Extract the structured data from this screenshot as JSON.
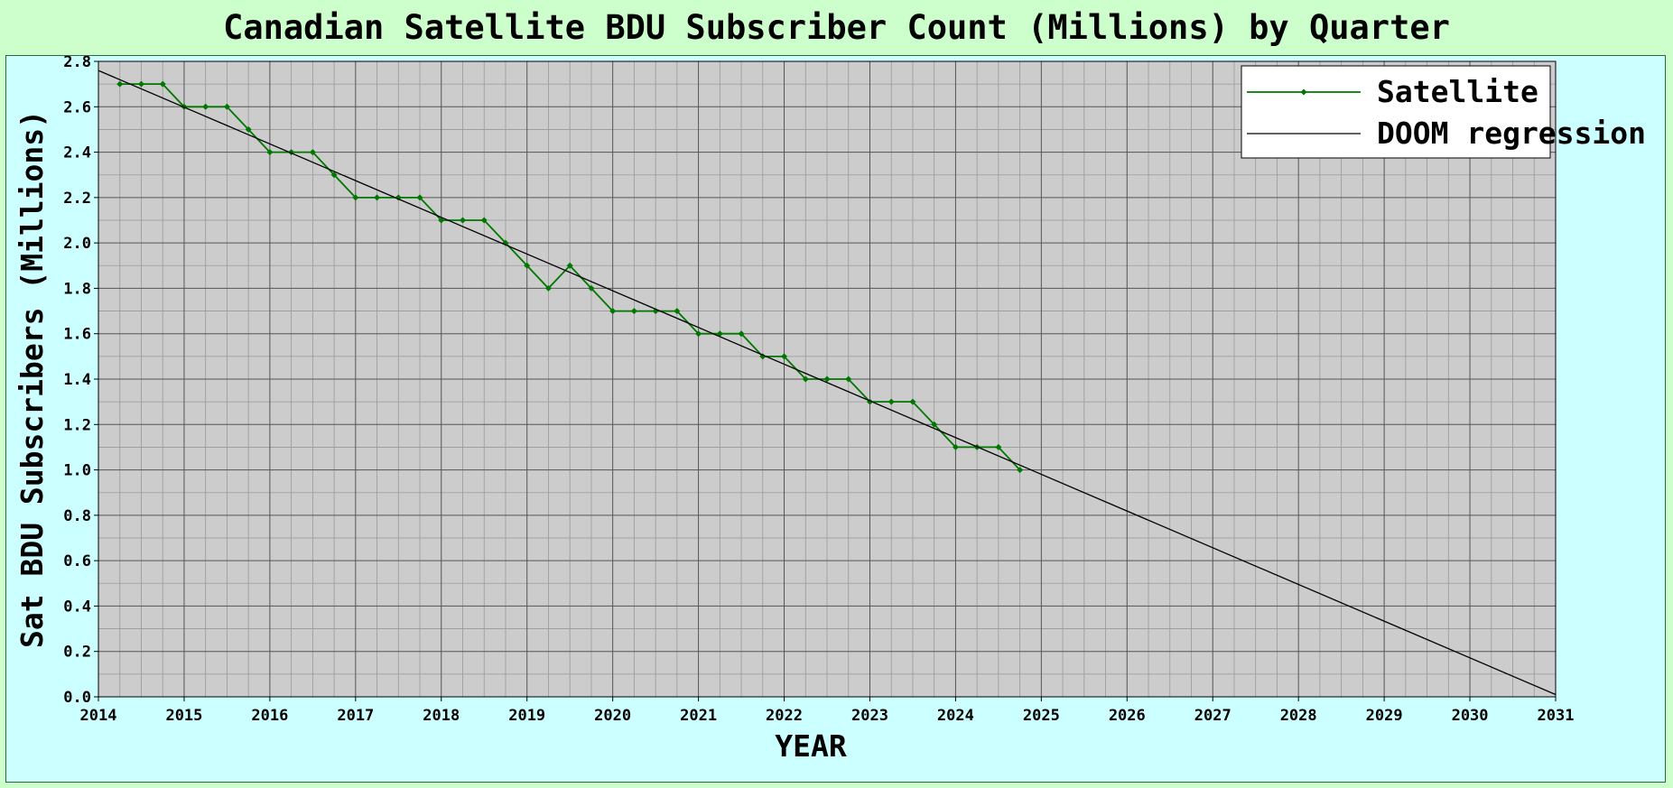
{
  "chart_data": {
    "type": "line",
    "title": "Canadian Satellite BDU Subscriber Count (Millions) by Quarter",
    "xlabel": "YEAR",
    "ylabel": "Sat BDU Subscribers (Millions)",
    "xlim": [
      2014,
      2031
    ],
    "ylim": [
      0.0,
      2.8
    ],
    "x_ticks": [
      "2014",
      "2015",
      "2016",
      "2017",
      "2018",
      "2019",
      "2020",
      "2021",
      "2022",
      "2023",
      "2024",
      "2025",
      "2026",
      "2027",
      "2028",
      "2029",
      "2030",
      "2031"
    ],
    "y_ticks": [
      "0.0",
      "0.2",
      "0.4",
      "0.6",
      "0.8",
      "1.0",
      "1.2",
      "1.4",
      "1.6",
      "1.8",
      "2.0",
      "2.2",
      "2.4",
      "2.6",
      "2.8"
    ],
    "grid": true,
    "legend_position": "top-right",
    "series": [
      {
        "name": "Satellite",
        "color": "#007700",
        "marker": "diamond",
        "x": [
          2014.25,
          2014.5,
          2014.75,
          2015.0,
          2015.25,
          2015.5,
          2015.75,
          2016.0,
          2016.25,
          2016.5,
          2016.75,
          2017.0,
          2017.25,
          2017.5,
          2017.75,
          2018.0,
          2018.25,
          2018.5,
          2018.75,
          2019.0,
          2019.25,
          2019.5,
          2019.75,
          2020.0,
          2020.25,
          2020.5,
          2020.75,
          2021.0,
          2021.25,
          2021.5,
          2021.75,
          2022.0,
          2022.25,
          2022.5,
          2022.75,
          2023.0,
          2023.25,
          2023.5,
          2023.75,
          2024.0,
          2024.25,
          2024.5,
          2024.75
        ],
        "y": [
          2.7,
          2.7,
          2.7,
          2.6,
          2.6,
          2.6,
          2.5,
          2.4,
          2.4,
          2.4,
          2.3,
          2.2,
          2.2,
          2.2,
          2.2,
          2.1,
          2.1,
          2.1,
          2.0,
          1.9,
          1.8,
          1.9,
          1.8,
          1.7,
          1.7,
          1.7,
          1.7,
          1.6,
          1.6,
          1.6,
          1.5,
          1.5,
          1.4,
          1.4,
          1.4,
          1.3,
          1.3,
          1.3,
          1.2,
          1.1,
          1.1,
          1.1,
          1.0
        ]
      },
      {
        "name": "DOOM regression",
        "color": "#000000",
        "x": [
          2014.0,
          2031.0
        ],
        "y": [
          2.76,
          0.01
        ]
      }
    ]
  }
}
